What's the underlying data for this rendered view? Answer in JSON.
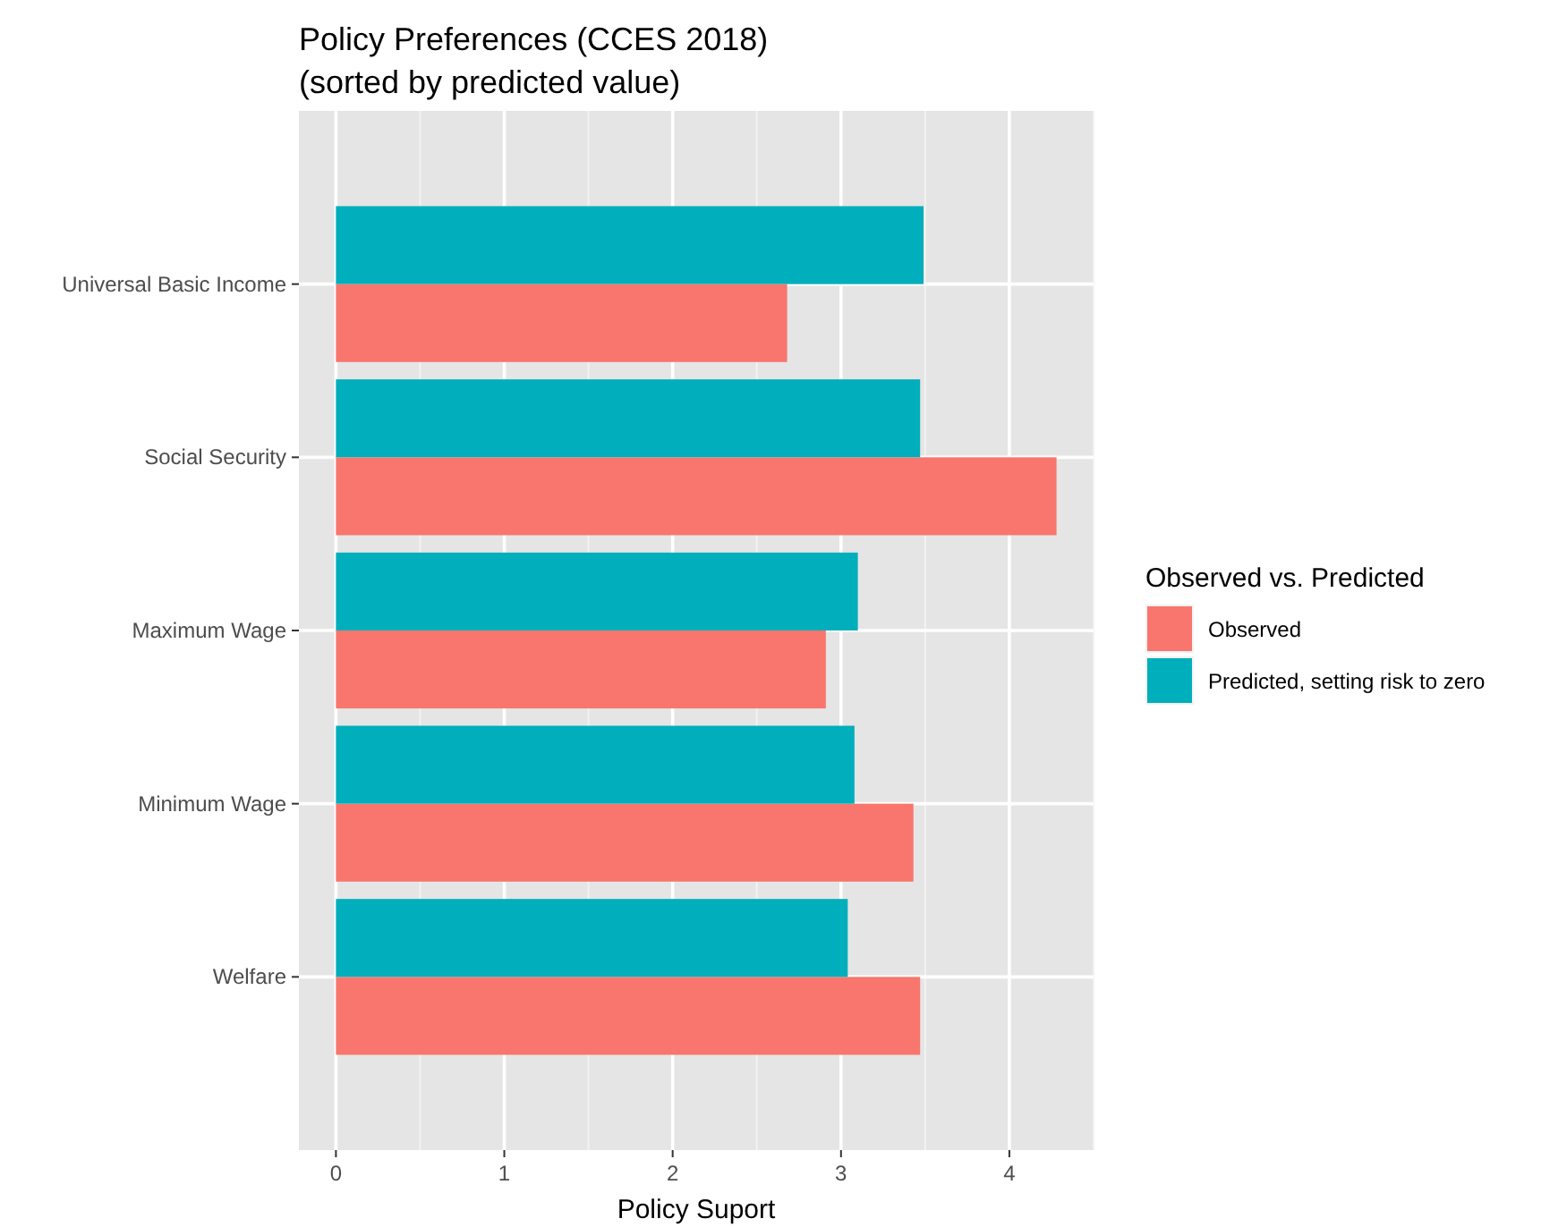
{
  "chart_data": {
    "type": "bar",
    "orientation": "horizontal",
    "title": "Policy Preferences (CCES 2018)",
    "subtitle": "(sorted by predicted value)",
    "xlabel": "Policy Suport",
    "legend_title": "Observed vs. Predicted",
    "categories": [
      "Universal Basic Income",
      "Social Security",
      "Maximum Wage",
      "Minimum Wage",
      "Welfare"
    ],
    "series": [
      {
        "name": "Observed",
        "color": "#f8766d",
        "values": [
          2.68,
          4.28,
          2.91,
          3.43,
          3.47
        ]
      },
      {
        "name": "Predicted, setting risk to zero",
        "color": "#00afbb",
        "values": [
          3.49,
          3.47,
          3.1,
          3.08,
          3.04
        ]
      }
    ],
    "xlim": [
      -0.22,
      4.5
    ],
    "xticks": [
      0,
      1,
      2,
      3,
      4
    ],
    "grid": true,
    "legend": "right"
  }
}
